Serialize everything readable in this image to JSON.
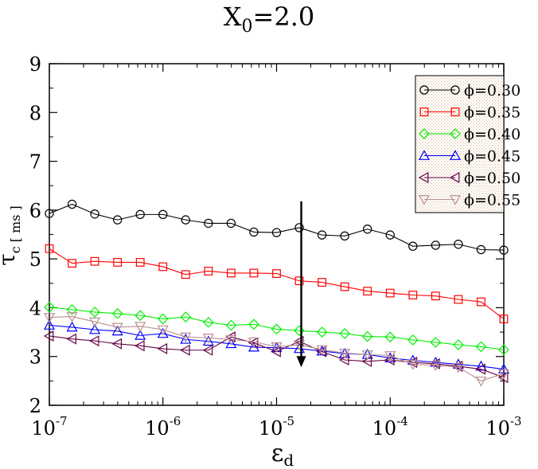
{
  "chart_data": {
    "type": "line",
    "title": "X",
    "title_sub": "0",
    "title_rest": "=2.0",
    "xlabel_main": "ε",
    "xlabel_sub": "d",
    "ylabel_main": "τ",
    "ylabel_sub": "c [ ms ]",
    "x_scale": "log",
    "xlim": [
      1e-07,
      0.001
    ],
    "ylim": [
      2,
      9
    ],
    "x_ticks": [
      {
        "base": "10",
        "exp": "-7",
        "value": 1e-07
      },
      {
        "base": "10",
        "exp": "-6",
        "value": 1e-06
      },
      {
        "base": "10",
        "exp": "-5",
        "value": 1e-05
      },
      {
        "base": "10",
        "exp": "-4",
        "value": 0.0001
      },
      {
        "base": "10",
        "exp": "-3",
        "value": 0.001
      }
    ],
    "y_ticks": [
      "2",
      "3",
      "4",
      "5",
      "6",
      "7",
      "8",
      "9"
    ],
    "grid": false,
    "legend_position": "top-right",
    "x": [
      1e-07,
      1.585e-07,
      2.512e-07,
      3.981e-07,
      6.31e-07,
      1e-06,
      1.585e-06,
      2.512e-06,
      3.981e-06,
      6.31e-06,
      1e-05,
      1.585e-05,
      2.512e-05,
      3.981e-05,
      6.31e-05,
      0.0001,
      0.0001585,
      0.0002512,
      0.0003981,
      0.000631,
      0.001
    ],
    "series": [
      {
        "name": "ϕ=0.30",
        "color": "#000000",
        "marker": "circle",
        "values": [
          5.93,
          6.12,
          5.92,
          5.8,
          5.91,
          5.91,
          5.8,
          5.73,
          5.73,
          5.55,
          5.54,
          5.64,
          5.49,
          5.47,
          5.61,
          5.49,
          5.26,
          5.28,
          5.3,
          5.19,
          5.18
        ]
      },
      {
        "name": "ϕ=0.35",
        "color": "#ff0000",
        "marker": "square",
        "values": [
          5.21,
          4.91,
          4.95,
          4.93,
          4.93,
          4.84,
          4.68,
          4.75,
          4.71,
          4.71,
          4.7,
          4.55,
          4.52,
          4.43,
          4.34,
          4.3,
          4.26,
          4.24,
          4.17,
          4.12,
          3.77
        ]
      },
      {
        "name": "ϕ=0.40",
        "color": "#00ee00",
        "marker": "diamond",
        "values": [
          4.01,
          3.96,
          3.91,
          3.88,
          3.84,
          3.77,
          3.81,
          3.7,
          3.64,
          3.66,
          3.56,
          3.53,
          3.5,
          3.47,
          3.41,
          3.4,
          3.34,
          3.29,
          3.24,
          3.2,
          3.14
        ]
      },
      {
        "name": "ϕ=0.45",
        "color": "#0000ff",
        "marker": "triangle-up",
        "values": [
          3.64,
          3.6,
          3.55,
          3.52,
          3.43,
          3.47,
          3.35,
          3.31,
          3.26,
          3.19,
          3.18,
          3.16,
          3.11,
          3.06,
          3.04,
          2.97,
          2.92,
          2.88,
          2.84,
          2.8,
          2.74
        ]
      },
      {
        "name": "ϕ=0.50",
        "color": "#660044",
        "marker": "triangle-left",
        "values": [
          3.42,
          3.36,
          3.32,
          3.26,
          3.22,
          3.16,
          3.13,
          3.13,
          3.4,
          3.28,
          3.1,
          3.31,
          3.1,
          2.93,
          2.9,
          2.93,
          2.88,
          2.85,
          2.8,
          2.74,
          2.57
        ]
      },
      {
        "name": "ϕ=0.55",
        "color": "#bc8f8f",
        "marker": "triangle-down",
        "values": [
          3.8,
          3.82,
          3.71,
          3.6,
          3.62,
          3.55,
          3.4,
          3.38,
          3.35,
          3.3,
          3.2,
          3.24,
          3.14,
          3.07,
          3.04,
          3.02,
          2.84,
          2.82,
          2.78,
          2.5,
          2.65
        ]
      }
    ],
    "annotations": [
      {
        "type": "arrow",
        "direction": "down",
        "x": 1.65e-05,
        "y_start": 6.18,
        "y_end": 2.78,
        "color": "#000000"
      }
    ]
  },
  "legend_box": {
    "background": "#efe4cb",
    "border": "#000000"
  }
}
